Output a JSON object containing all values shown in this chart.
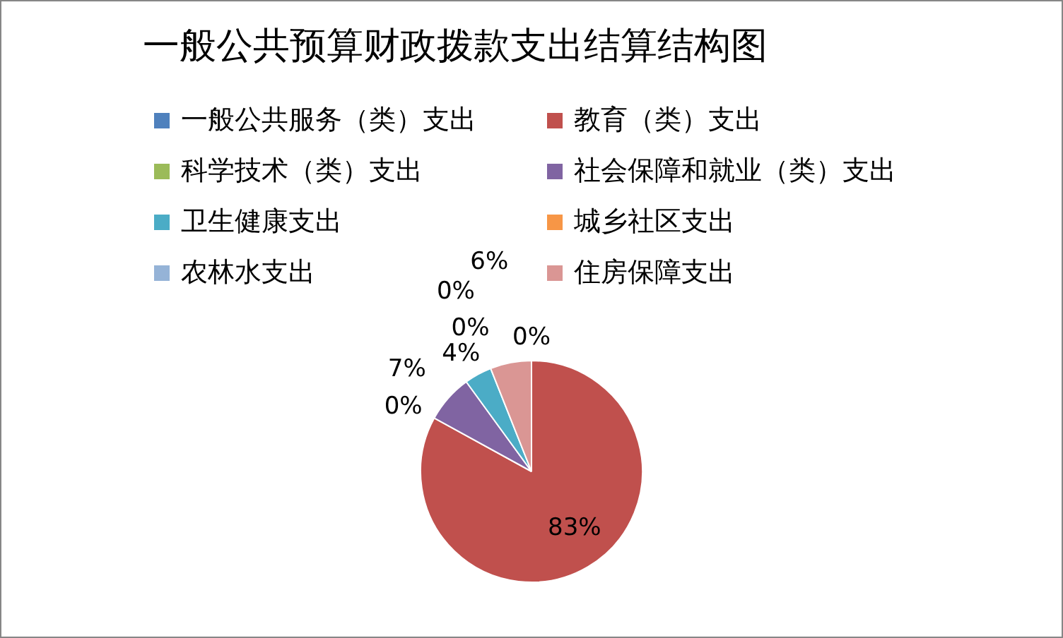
{
  "chart_data": {
    "type": "pie",
    "title": "一般公共预算财政拨款支出结算结构图",
    "categories": [
      "一般公共服务（类）支出",
      "教育（类）支出",
      "科学技术（类）支出",
      "社会保障和就业（类）支出",
      "卫生健康支出",
      "城乡社区支出",
      "农林水支出",
      "住房保障支出"
    ],
    "values": [
      0,
      83,
      0,
      7,
      4,
      0,
      0,
      6
    ],
    "value_labels": [
      "0%",
      "83%",
      "0%",
      "7%",
      "4%",
      "0%",
      "0%",
      "6%"
    ],
    "colors": [
      "#4f81bd",
      "#c0504d",
      "#9bbb59",
      "#8064a2",
      "#4bacc6",
      "#f79646",
      "#95b3d7",
      "#da9694"
    ],
    "legend": "top"
  }
}
